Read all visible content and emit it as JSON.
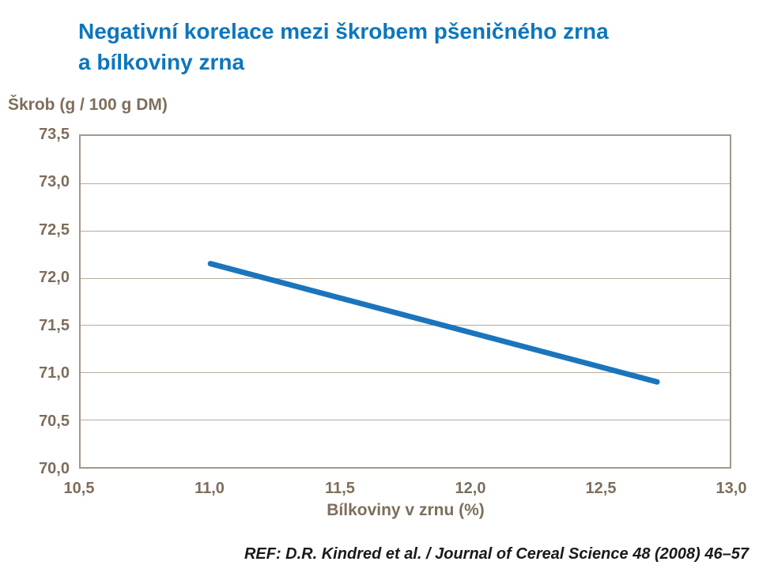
{
  "slide": {
    "title": "Negativní korelace mezi škrobem pšeničného zrna\na bílkoviny zrna",
    "reference": "REF: D.R. Kindred et al. / Journal of Cereal Science 48 (2008) 46–57"
  },
  "chart_data": {
    "type": "line",
    "title": "Negativní korelace mezi škrobem pšeničného zrna a bílkoviny zrna",
    "xlabel": "Bílkoviny v zrnu (%)",
    "ylabel": "Škrob (g / 100 g DM)",
    "xlim": [
      10.5,
      13.0
    ],
    "ylim": [
      70.0,
      73.5
    ],
    "x_tick_values": [
      10.5,
      11.0,
      11.5,
      12.0,
      12.5,
      13.0
    ],
    "x_tick_labels": [
      "10,5",
      "11,0",
      "11,5",
      "12,0",
      "12,5",
      "13,0"
    ],
    "y_tick_values": [
      73.5,
      73.0,
      72.5,
      72.0,
      71.5,
      71.0,
      70.5,
      70.0
    ],
    "y_tick_labels": [
      "73,5",
      "73,0",
      "72,5",
      "72,0",
      "71,5",
      "71,0",
      "70,5",
      "70,0"
    ],
    "grid": "horizontal-only",
    "legend": "none",
    "series": [
      {
        "x": [
          11.0,
          12.72
        ],
        "y": [
          72.15,
          70.9
        ],
        "color": "#1b75bc",
        "stroke_width": 7
      }
    ]
  },
  "colors": {
    "title": "#0d76bd",
    "axis_text": "#7d6e5b",
    "grid_line": "#b5aca0",
    "plot_border": "#a39889",
    "reference_text": "#1a1a1a",
    "line": "#1b75bc"
  }
}
